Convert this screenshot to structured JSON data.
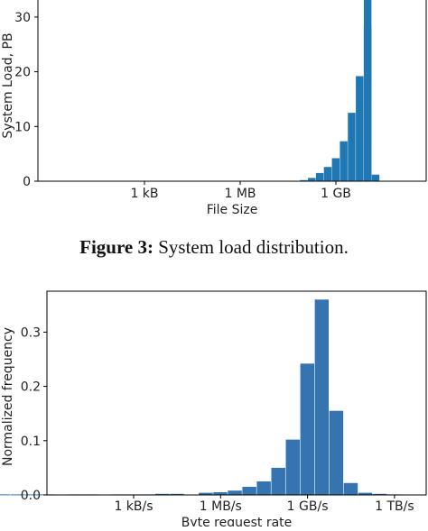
{
  "caption": {
    "label": "Figure 3:",
    "text": "System load distribution."
  },
  "chart_data": [
    {
      "type": "bar",
      "xlabel": "File Size",
      "ylabel": "System Load, PB",
      "x_scale": "log",
      "y_ticks": [
        0,
        10,
        20,
        30
      ],
      "x_ticks": [
        "1 kB",
        "1 MB",
        "1 GB"
      ],
      "ylim": [
        0,
        33
      ],
      "grid": false,
      "color": "#1f77b4",
      "bins_log10_bytes": [
        8.0,
        8.25,
        8.5,
        8.75,
        9.0,
        9.25,
        9.5,
        9.75,
        10.0,
        10.25
      ],
      "values": [
        0.2,
        0.6,
        1.5,
        2.6,
        4.2,
        7.3,
        12.5,
        19.2,
        28.5,
        1.2
      ],
      "values_note_clipped": [
        false,
        false,
        false,
        false,
        false,
        false,
        false,
        false,
        false,
        false
      ]
    },
    {
      "type": "bar",
      "xlabel": "Byte request rate",
      "ylabel": "Normalized frequency",
      "x_scale": "log",
      "y_ticks": [
        "0.0",
        "0.1",
        "0.2",
        "0.3"
      ],
      "x_ticks": [
        "1 kB/s",
        "1 MB/s",
        "1 GB/s",
        "1 TB/s"
      ],
      "ylim": [
        0,
        0.37
      ],
      "grid": false,
      "color": "#3574b0",
      "bins_log10_bytes_per_s": [
        -3.0,
        -2.5,
        -2.0,
        -1.5,
        -1.0,
        -0.5,
        0.0,
        0.5,
        1.0,
        1.5,
        2.0,
        2.5,
        3.0,
        3.5,
        4.0,
        4.5,
        5.0,
        5.5,
        6.0,
        6.5,
        7.0,
        7.5,
        8.0,
        8.5,
        9.0,
        9.5,
        10.0,
        10.5,
        11.0,
        11.5,
        12.0,
        12.5
      ],
      "values": [
        0.001,
        0.0,
        0.001,
        0.001,
        0.001,
        0.001,
        0.001,
        0.0,
        0.001,
        0.001,
        0.0,
        0.001,
        0.001,
        0.001,
        0.002,
        0.002,
        0.0,
        0.004,
        0.005,
        0.008,
        0.015,
        0.025,
        0.05,
        0.102,
        0.242,
        0.36,
        0.155,
        0.022,
        0.004,
        0.002,
        0.001,
        0.0
      ]
    }
  ]
}
